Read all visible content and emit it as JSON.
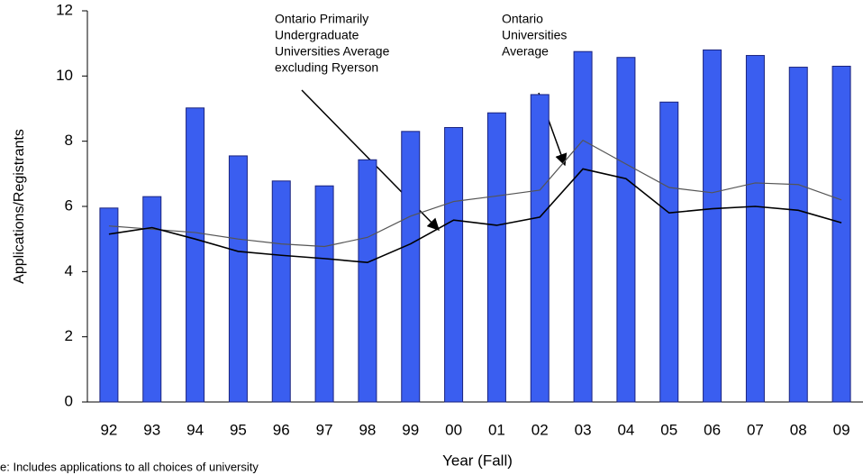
{
  "chart_data": {
    "type": "bar",
    "x_label": "Year (Fall)",
    "y_label": "Applications/Registrants",
    "categories": [
      "92",
      "93",
      "94",
      "95",
      "96",
      "97",
      "98",
      "99",
      "00",
      "01",
      "02",
      "03",
      "04",
      "05",
      "06",
      "07",
      "08",
      "09"
    ],
    "values": [
      5.95,
      6.3,
      9.02,
      7.55,
      6.78,
      6.63,
      7.43,
      8.3,
      8.42,
      8.87,
      9.43,
      10.75,
      10.57,
      9.2,
      10.8,
      10.63,
      10.27,
      10.3
    ],
    "color": "#3a5ef0",
    "lines": [
      {
        "color": "#555555",
        "values": [
          5.4,
          5.3,
          5.2,
          5.0,
          4.85,
          4.77,
          5.05,
          5.7,
          6.15,
          6.32,
          6.5,
          8.03,
          7.3,
          6.58,
          6.42,
          6.72,
          6.67,
          6.2
        ]
      },
      {
        "color": "#000000",
        "values": [
          5.15,
          5.35,
          5.0,
          4.62,
          4.5,
          4.4,
          4.28,
          4.85,
          5.58,
          5.42,
          5.67,
          7.15,
          6.85,
          5.8,
          5.93,
          6.0,
          5.88,
          5.5
        ]
      }
    ],
    "annotations": [
      [
        "Ontario Primarily",
        "Undergraduate",
        "Universities Average",
        "excluding Ryerson"
      ],
      [
        "Ontario",
        "Universities",
        "Average"
      ]
    ],
    "footnote": "e: Includes applications to all choices of university",
    "ylim": [
      0,
      12
    ],
    "yticks": [
      0,
      2,
      4,
      6,
      8,
      10,
      12
    ]
  }
}
